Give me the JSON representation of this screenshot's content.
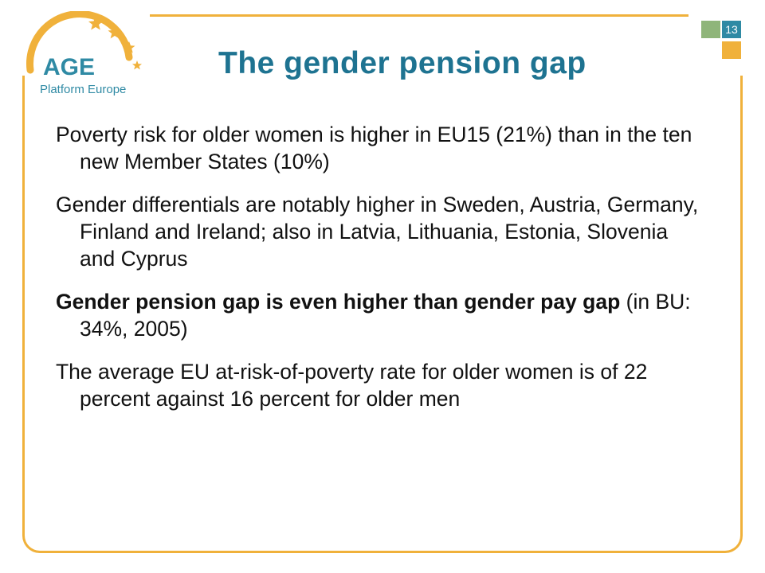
{
  "slide": {
    "number": "13",
    "title": "The gender pension gap"
  },
  "logo": {
    "name": "AGE",
    "subtitle": "Platform Europe"
  },
  "colors": {
    "accent_orange": "#f0b13b",
    "accent_teal": "#2f8aa4",
    "accent_green": "#8fb57a",
    "title_color": "#1e7391"
  },
  "paragraphs": [
    {
      "text": "Poverty risk for older women is higher in EU15 (21%) than in the ten new Member States (10%)"
    },
    {
      "text": "Gender differentials are notably higher in Sweden, Austria, Germany, Finland and Ireland; also in Latvia, Lithuania, Estonia, Slovenia and Cyprus"
    },
    {
      "bold": "Gender pension gap is even higher than gender pay gap",
      "rest": " (in BU: 34%, 2005)"
    },
    {
      "text": "The average EU at-risk-of-poverty rate for older women is of  22 percent against 16 percent for older men"
    }
  ]
}
